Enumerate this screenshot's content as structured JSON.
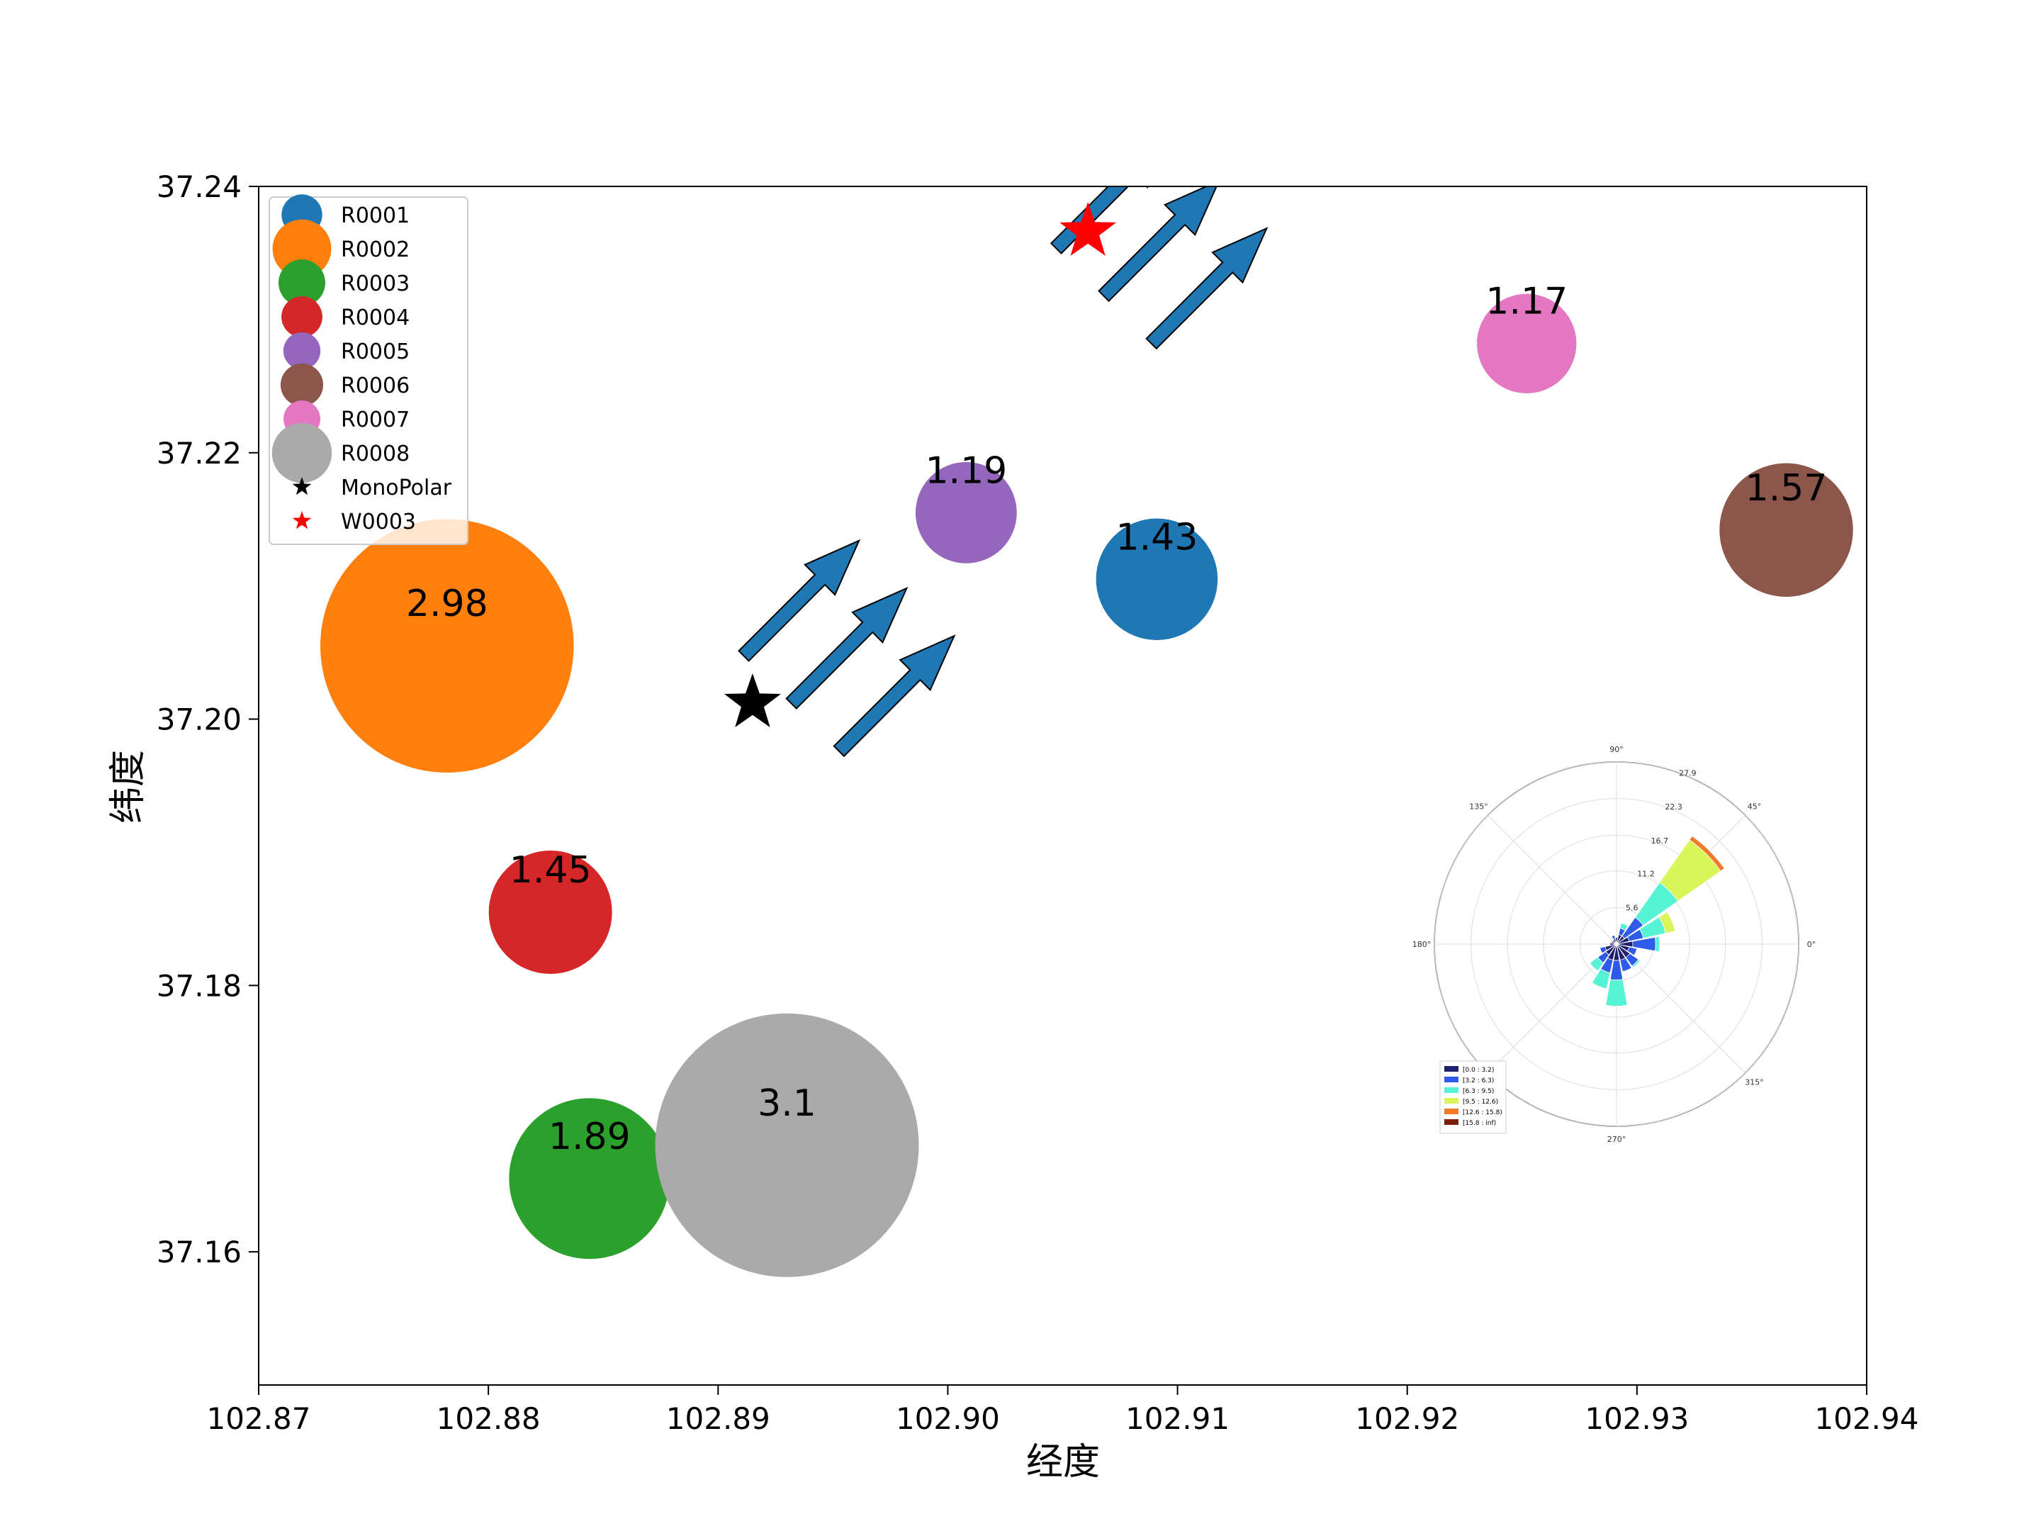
{
  "chart_data": {
    "type": "scatter",
    "xlabel": "经度",
    "ylabel": "纬度",
    "xlim": [
      102.87,
      102.94
    ],
    "ylim": [
      37.15,
      37.24
    ],
    "xticks": [
      102.87,
      102.88,
      102.89,
      102.9,
      102.91,
      102.92,
      102.93,
      102.94
    ],
    "xtick_labels": [
      "102.87",
      "102.88",
      "102.89",
      "102.90",
      "102.91",
      "102.92",
      "102.93",
      "102.94"
    ],
    "yticks": [
      37.16,
      37.18,
      37.2,
      37.22,
      37.24
    ],
    "ytick_labels": [
      "37.16",
      "37.18",
      "37.20",
      "37.22",
      "37.24"
    ],
    "grid": false,
    "legend_position": "upper-left",
    "series": [
      {
        "name": "R0001",
        "x": 102.9091,
        "y": 37.2105,
        "value": 1.43,
        "label": "1.43",
        "color": "#1f77b4"
      },
      {
        "name": "R0002",
        "x": 102.8782,
        "y": 37.2055,
        "value": 2.98,
        "label": "2.98",
        "color": "#ff7f0e"
      },
      {
        "name": "R0003",
        "x": 102.8844,
        "y": 37.1655,
        "value": 1.89,
        "label": "1.89",
        "color": "#2ca02c"
      },
      {
        "name": "R0004",
        "x": 102.8827,
        "y": 37.1855,
        "value": 1.45,
        "label": "1.45",
        "color": "#d62728"
      },
      {
        "name": "R0005",
        "x": 102.9008,
        "y": 37.2155,
        "value": 1.19,
        "label": "1.19",
        "color": "#9467bd"
      },
      {
        "name": "R0006",
        "x": 102.9365,
        "y": 37.2142,
        "value": 1.57,
        "label": "1.57",
        "color": "#8c564b"
      },
      {
        "name": "R0007",
        "x": 102.9252,
        "y": 37.2282,
        "value": 1.17,
        "label": "1.17",
        "color": "#e377c2"
      },
      {
        "name": "R0008",
        "x": 102.893,
        "y": 37.168,
        "value": 3.1,
        "label": "3.1",
        "color": "#aaaaaa"
      },
      {
        "name": "MonoPolar",
        "x": 102.8915,
        "y": 37.2012,
        "marker": "star",
        "color": "#000000"
      },
      {
        "name": "W0003",
        "x": 102.9061,
        "y": 37.2366,
        "marker": "star",
        "color": "#ff0000"
      }
    ],
    "wind_arrows": {
      "color": "#1f77b4",
      "direction_deg": 45,
      "groups": [
        {
          "x": 102.8957,
          "y": 37.2055
        },
        {
          "x": 102.9093,
          "y": 37.2361
        }
      ]
    },
    "windrose": {
      "direction_labels": [
        "0°",
        "45°",
        "90°",
        "135°",
        "180°",
        "270°",
        "315°"
      ],
      "radial_labels": [
        "5.6",
        "11.2",
        "16.7",
        "22.3",
        "27.9"
      ],
      "radial_max": 27.9,
      "bins": [
        {
          "label": "[0.0 : 3.2)",
          "color": "#1f1f6e"
        },
        {
          "label": "[3.2 : 6.3)",
          "color": "#2e5be8"
        },
        {
          "label": "[6.3 : 9.5)",
          "color": "#55f2d6"
        },
        {
          "label": "[9.5 : 12.6)",
          "color": "#d9f55a"
        },
        {
          "label": "[12.6 : 15.8)",
          "color": "#f07a2a"
        },
        {
          "label": "[15.8 : inf)",
          "color": "#7a1f10"
        }
      ],
      "petals": [
        {
          "dir": 45,
          "stack": [
            1.5,
            3.5,
            6.5,
            8.0,
            0.7
          ]
        },
        {
          "dir": 22.5,
          "stack": [
            2.0,
            2.2,
            3.5,
            1.5
          ]
        },
        {
          "dir": 0,
          "stack": [
            2.5,
            3.5,
            0.6
          ]
        },
        {
          "dir": 67.5,
          "stack": [
            1.5,
            1.0,
            0.8
          ]
        },
        {
          "dir": 337.5,
          "stack": [
            2.0,
            1.2
          ]
        },
        {
          "dir": 315,
          "stack": [
            2.5,
            1.6,
            0.3
          ]
        },
        {
          "dir": 292.5,
          "stack": [
            2.5,
            1.8
          ]
        },
        {
          "dir": 270,
          "stack": [
            2.5,
            3.0,
            4.0
          ]
        },
        {
          "dir": 247.5,
          "stack": [
            2.5,
            2.0,
            2.5
          ]
        },
        {
          "dir": 225,
          "stack": [
            2.0,
            1.5,
            1.5
          ]
        },
        {
          "dir": 202.5,
          "stack": [
            1.8,
            0.8
          ]
        },
        {
          "dir": 180,
          "stack": [
            1.0
          ]
        },
        {
          "dir": 157.5,
          "stack": [
            0.8
          ]
        },
        {
          "dir": 135,
          "stack": [
            0.8
          ]
        },
        {
          "dir": 112.5,
          "stack": [
            0.9,
            0.5
          ]
        },
        {
          "dir": 90,
          "stack": [
            1.0
          ]
        }
      ]
    }
  }
}
